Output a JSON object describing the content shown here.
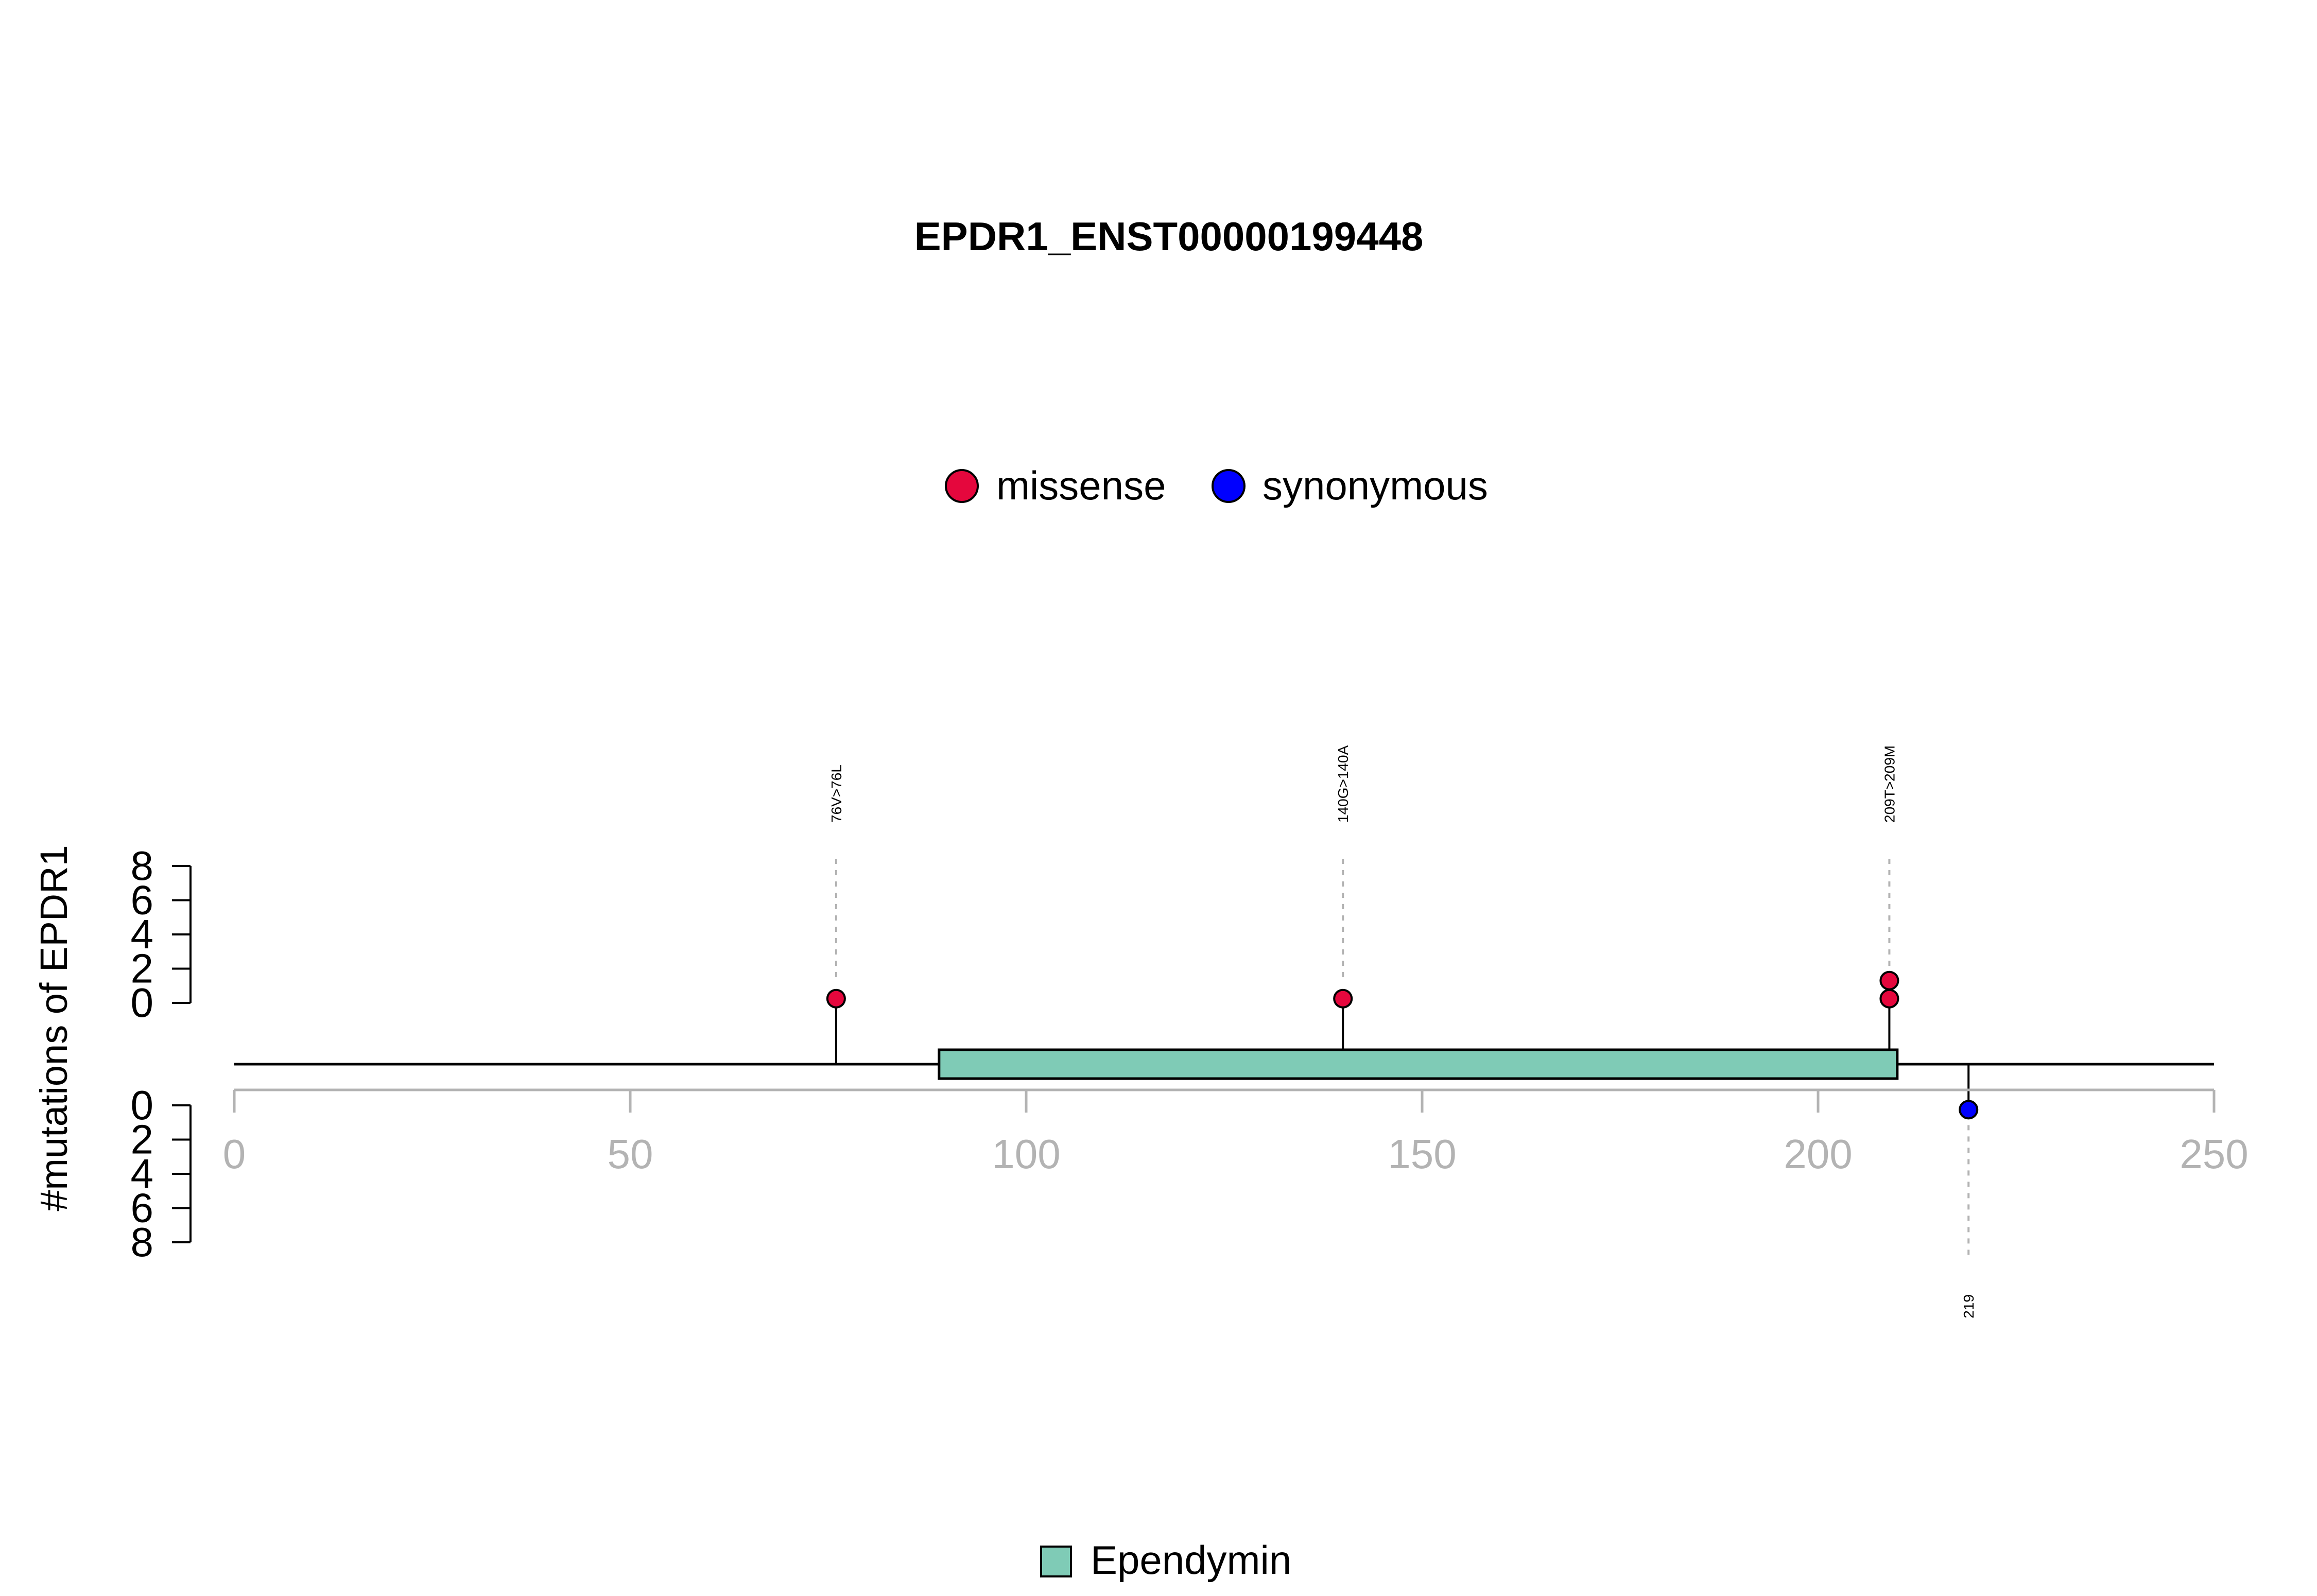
{
  "chart_data": {
    "type": "lollipop",
    "title": "EPDR1_ENST00000199448",
    "ylabel": "#mutations of EPDR1",
    "x_axis": {
      "range": [
        0,
        250
      ],
      "ticks": [
        0,
        50,
        100,
        150,
        200,
        250
      ]
    },
    "y_axis_upper": {
      "range": [
        0,
        8
      ],
      "ticks": [
        0,
        2,
        4,
        6,
        8
      ]
    },
    "y_axis_lower": {
      "range": [
        0,
        8
      ],
      "ticks": [
        0,
        2,
        4,
        6,
        8
      ]
    },
    "legend": {
      "position": "top-center",
      "entries": [
        {
          "label": "missense",
          "color": "#e5073d"
        },
        {
          "label": "synonymous",
          "color": "#0000ff"
        }
      ]
    },
    "domain_legend": {
      "position": "bottom-center",
      "entries": [
        {
          "label": "Ependymin",
          "color": "#7fcbb6"
        }
      ]
    },
    "protein": {
      "start": 0,
      "end": 250
    },
    "domains": [
      {
        "name": "Ependymin",
        "start": 89,
        "end": 210,
        "color": "#7fcbb6"
      }
    ],
    "mutations": [
      {
        "label": "76V>76L",
        "position": 76,
        "count": 1,
        "type": "missense",
        "side": "top"
      },
      {
        "label": "140G>140A",
        "position": 140,
        "count": 1,
        "type": "missense",
        "side": "top"
      },
      {
        "label": "209T>209M",
        "position": 209,
        "count": 2,
        "type": "missense",
        "side": "top"
      },
      {
        "label": "219",
        "position": 219,
        "count": 1,
        "type": "synonymous",
        "side": "bottom"
      }
    ],
    "colors": {
      "missense": "#e5073d",
      "synonymous": "#0000ff",
      "axis_gray": "#b3b3b3",
      "domain": "#7fcbb6"
    }
  }
}
